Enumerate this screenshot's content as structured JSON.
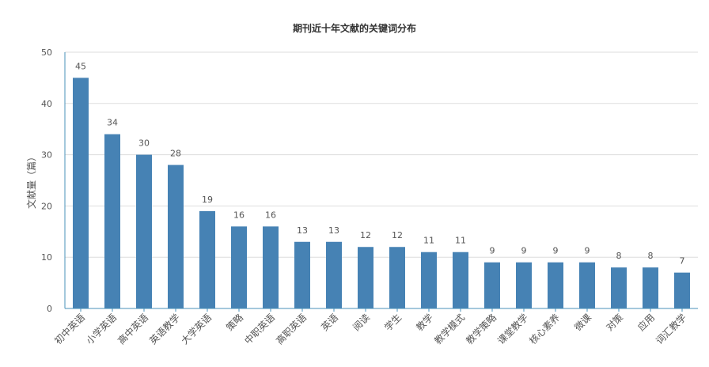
{
  "chart_data": {
    "type": "bar",
    "title": "期刊近十年文献的关键词分布",
    "xlabel": "",
    "ylabel": "文献量（篇）",
    "ylim": [
      0,
      50
    ],
    "yticks": [
      "0",
      "10",
      "20",
      "30",
      "40",
      "50"
    ],
    "grid": true,
    "bar_color": "#4682b4",
    "categories": [
      "初中英语",
      "小学英语",
      "高中英语",
      "英语教学",
      "大学英语",
      "策略",
      "中职英语",
      "高职英语",
      "英语",
      "阅读",
      "学生",
      "教学",
      "教学模式",
      "教学策略",
      "课堂教学",
      "核心素养",
      "微课",
      "对策",
      "应用",
      "词汇教学"
    ],
    "values": [
      45,
      34,
      30,
      28,
      19,
      16,
      16,
      13,
      13,
      12,
      12,
      11,
      11,
      9,
      9,
      9,
      9,
      8,
      8,
      7
    ]
  }
}
